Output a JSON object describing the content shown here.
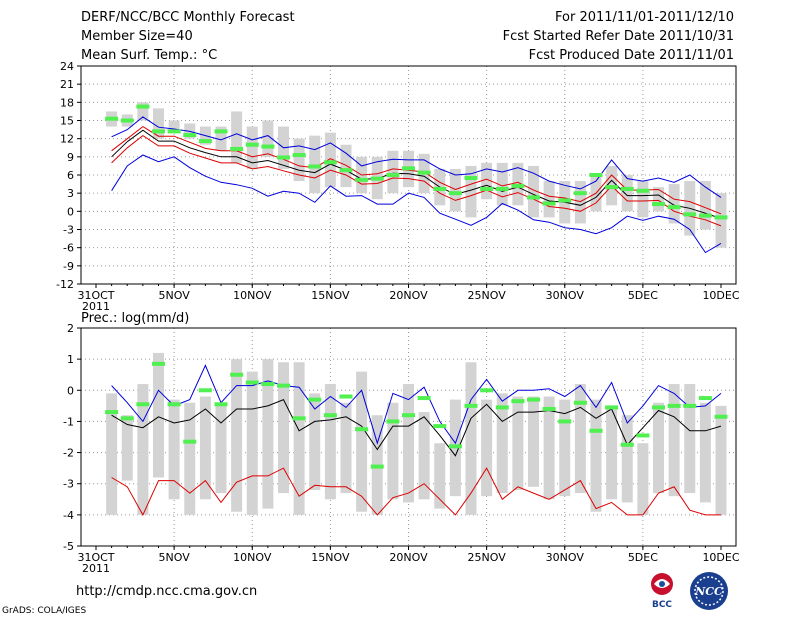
{
  "header": {
    "title": "DERF/NCC/BCC Monthly Forecast",
    "member_size": "Member Size=40",
    "variable": "Mean Surf. Temp.: °C",
    "forecast_period": "For 2011/11/01-2011/12/10",
    "started_refer": "Fcst Started Refer Date 2011/10/31",
    "produced": "Fcst Produced Date 2011/11/01"
  },
  "footer": {
    "url": "http://cmdp.ncc.cma.gov.cn",
    "grads": "GrADS: COLA/IGES",
    "logo_bcc": "BCC",
    "logo_ncc": "NCC"
  },
  "colors": {
    "box": "#d3d3d3",
    "obs": "#4ff04f",
    "upper": "#0000dd",
    "mean": "#000000",
    "lower": "#dd0000",
    "grid": "#999999"
  },
  "chart_data": [
    {
      "type": "line",
      "name": "temperature",
      "ylabel": "Mean Surf. Temp.: °C",
      "ylim": [
        -12,
        24
      ],
      "yticks": [
        -12,
        -9,
        -6,
        -3,
        0,
        3,
        6,
        9,
        12,
        15,
        18,
        21,
        24
      ],
      "x_start": 0,
      "x_end": 40,
      "xticks": [
        {
          "x": 0,
          "label": "31OCT",
          "sub": "2011"
        },
        {
          "x": 5,
          "label": "5NOV"
        },
        {
          "x": 10,
          "label": "10NOV"
        },
        {
          "x": 15,
          "label": "15NOV"
        },
        {
          "x": 20,
          "label": "20NOV"
        },
        {
          "x": 25,
          "label": "25NOV"
        },
        {
          "x": 30,
          "label": "30NOV"
        },
        {
          "x": 35,
          "label": "5DEC"
        },
        {
          "x": 40,
          "label": "10DEC"
        }
      ],
      "grid": true,
      "box_low": [
        14.0,
        14.0,
        15.0,
        12.0,
        13.0,
        12.0,
        11.0,
        10.0,
        8.0,
        7.0,
        9.0,
        7.0,
        5.0,
        3.0,
        4.0,
        4.0,
        3.0,
        2.0,
        3.0,
        4.0,
        3.0,
        1.0,
        0.0,
        -1.0,
        2.0,
        1.0,
        1.0,
        -1.0,
        -1.0,
        -2.0,
        -2.0,
        0.0,
        1.0,
        0.0,
        -1.0,
        0.0,
        -2.0,
        -4.0,
        -3.0,
        -6.0
      ],
      "box_high": [
        16.5,
        16.0,
        18.0,
        17.0,
        15.0,
        14.5,
        14.0,
        14.0,
        16.5,
        14.0,
        15.0,
        14.0,
        12.0,
        12.5,
        13.0,
        11.0,
        9.0,
        9.0,
        10.0,
        10.0,
        9.5,
        7.0,
        7.0,
        7.5,
        8.0,
        8.0,
        8.0,
        7.5,
        5.0,
        5.0,
        5.0,
        6.0,
        7.5,
        6.0,
        5.0,
        4.0,
        4.5,
        5.0,
        5.0,
        3.0
      ],
      "obs": [
        15.3,
        15.0,
        17.3,
        13.2,
        13.2,
        12.6,
        11.6,
        13.2,
        10.3,
        11.0,
        10.7,
        8.9,
        9.3,
        7.4,
        8.1,
        6.8,
        5.2,
        5.4,
        6.0,
        7.1,
        6.4,
        3.7,
        3.0,
        5.5,
        3.7,
        3.7,
        4.2,
        2.3,
        1.3,
        1.8,
        3.0,
        6.0,
        4.0,
        3.7,
        3.4,
        1.2,
        0.7,
        -0.5,
        -0.7,
        -1.0
      ],
      "series": [
        {
          "name": "ensemble-upper",
          "values": [
            12.3,
            13.5,
            15.6,
            13.9,
            13.6,
            13.2,
            12.5,
            11.8,
            12.8,
            11.8,
            12.5,
            10.5,
            10.8,
            10.2,
            11.3,
            9.6,
            7.5,
            8.2,
            8.6,
            8.5,
            8.5,
            7.0,
            6.0,
            6.2,
            7.0,
            6.5,
            7.2,
            6.3,
            5.0,
            4.3,
            3.7,
            5.0,
            8.5,
            5.4,
            5.0,
            5.5,
            4.8,
            6.0,
            4.0,
            2.3
          ]
        },
        {
          "name": "ensemble-upper-mid",
          "values": [
            10.0,
            12.0,
            14.0,
            12.4,
            12.4,
            11.4,
            10.4,
            10.0,
            10.0,
            9.0,
            9.5,
            8.6,
            7.5,
            7.2,
            8.7,
            7.6,
            6.0,
            6.2,
            7.0,
            6.8,
            6.5,
            4.8,
            3.6,
            4.5,
            5.3,
            4.2,
            4.8,
            3.5,
            2.5,
            2.2,
            1.6,
            3.0,
            6.0,
            3.5,
            3.5,
            3.6,
            2.0,
            1.6,
            0.6,
            -0.4
          ]
        },
        {
          "name": "ensemble-mean",
          "values": [
            9.0,
            11.5,
            13.4,
            11.6,
            11.6,
            10.5,
            9.7,
            9.0,
            9.0,
            8.0,
            8.4,
            7.6,
            6.8,
            6.4,
            7.8,
            6.8,
            5.3,
            5.4,
            6.3,
            6.2,
            5.8,
            4.0,
            2.8,
            3.5,
            4.3,
            3.3,
            4.0,
            2.8,
            1.7,
            1.5,
            1.0,
            2.3,
            5.1,
            2.6,
            2.6,
            2.7,
            1.0,
            0.5,
            -0.3,
            -1.2
          ]
        },
        {
          "name": "ensemble-lower-mid",
          "values": [
            8.0,
            10.5,
            12.5,
            10.8,
            10.8,
            9.6,
            8.8,
            8.0,
            8.0,
            7.0,
            7.4,
            6.7,
            6.0,
            5.5,
            6.8,
            6.0,
            4.5,
            4.6,
            5.5,
            5.4,
            5.0,
            3.0,
            1.8,
            2.6,
            3.5,
            2.4,
            3.1,
            2.0,
            0.8,
            0.5,
            0.0,
            1.4,
            4.2,
            1.7,
            1.7,
            1.8,
            0.0,
            -0.8,
            -1.4,
            -2.4
          ]
        },
        {
          "name": "ensemble-lower",
          "values": [
            3.4,
            7.5,
            9.3,
            8.2,
            9.0,
            7.2,
            5.8,
            4.8,
            4.4,
            3.8,
            2.5,
            3.3,
            3.0,
            1.5,
            4.2,
            2.5,
            2.6,
            1.2,
            1.2,
            3.0,
            2.3,
            -0.3,
            -1.3,
            -2.3,
            -1.0,
            1.3,
            0.2,
            -1.4,
            -1.8,
            -2.7,
            -3.0,
            -3.7,
            -2.7,
            -0.8,
            -1.5,
            -0.8,
            -1.3,
            -3.0,
            -6.8,
            -5.3
          ]
        }
      ]
    },
    {
      "type": "line",
      "name": "precipitation",
      "ylabel": "Prec.: log(mm/d)",
      "ylim": [
        -5,
        2
      ],
      "yticks": [
        -5,
        -4,
        -3,
        -2,
        -1,
        0,
        1,
        2
      ],
      "x_start": 0,
      "x_end": 40,
      "xticks": [
        {
          "x": 0,
          "label": "31OCT",
          "sub": "2011"
        },
        {
          "x": 5,
          "label": "5NOV"
        },
        {
          "x": 10,
          "label": "10NOV"
        },
        {
          "x": 15,
          "label": "15NOV"
        },
        {
          "x": 20,
          "label": "20NOV"
        },
        {
          "x": 25,
          "label": "25NOV"
        },
        {
          "x": 30,
          "label": "30NOV"
        },
        {
          "x": 35,
          "label": "5DEC"
        },
        {
          "x": 40,
          "label": "10DEC"
        }
      ],
      "grid": true,
      "box_low": [
        -4.0,
        -2.9,
        -4.0,
        -2.8,
        -3.5,
        -4.0,
        -3.5,
        -3.3,
        -3.9,
        -4.0,
        -3.8,
        -3.3,
        -4.0,
        -3.2,
        -3.5,
        -3.3,
        -3.9,
        -4.0,
        -3.5,
        -3.6,
        -3.5,
        -3.8,
        -3.4,
        -4.0,
        -3.4,
        -3.3,
        -3.2,
        -3.1,
        -3.5,
        -3.4,
        -3.3,
        -3.9,
        -3.5,
        -3.6,
        -4.0,
        -3.3,
        -3.4,
        -3.3,
        -3.6,
        -4.0
      ],
      "box_high": [
        -0.1,
        -0.8,
        0.2,
        1.2,
        -0.3,
        -0.4,
        -0.2,
        -0.4,
        1.0,
        0.6,
        1.0,
        0.9,
        0.9,
        -0.1,
        0.2,
        -0.4,
        0.6,
        -0.8,
        -0.4,
        0.2,
        -0.7,
        -1.7,
        -0.3,
        0.9,
        -0.3,
        -0.1,
        -0.2,
        -0.2,
        -0.2,
        -0.3,
        0.2,
        -0.3,
        -0.5,
        -0.8,
        -1.7,
        -0.4,
        0.2,
        0.2,
        -0.4,
        -0.5
      ],
      "obs": [
        -0.7,
        -0.9,
        -0.45,
        0.85,
        -0.45,
        -1.65,
        0.0,
        -0.45,
        0.5,
        0.25,
        0.2,
        0.15,
        -0.9,
        -0.3,
        -0.8,
        -0.2,
        -1.25,
        -2.45,
        -1.0,
        -0.8,
        -0.25,
        -1.15,
        -1.8,
        -0.5,
        0.0,
        -0.55,
        -0.35,
        -0.3,
        -0.6,
        -1.0,
        -0.4,
        -1.3,
        -0.55,
        -1.75,
        -1.45,
        -0.55,
        -0.5,
        -0.5,
        -0.25,
        -0.85
      ],
      "series": [
        {
          "name": "ensemble-upper",
          "values": [
            0.15,
            -0.4,
            -1.0,
            0.0,
            -0.5,
            -0.3,
            0.8,
            -0.4,
            0.15,
            0.15,
            0.3,
            0.15,
            0.1,
            -0.6,
            -0.2,
            -0.55,
            0.0,
            -1.7,
            -0.1,
            -0.3,
            0.1,
            -1.0,
            -1.7,
            -0.3,
            0.35,
            -0.35,
            0.0,
            0.0,
            0.05,
            -0.2,
            0.15,
            -0.55,
            0.25,
            -1.05,
            -0.5,
            0.15,
            -0.1,
            -0.55,
            -0.5,
            -0.1
          ]
        },
        {
          "name": "ensemble-mean",
          "values": [
            -0.8,
            -1.1,
            -1.2,
            -0.85,
            -1.05,
            -0.95,
            -0.6,
            -1.05,
            -0.6,
            -0.6,
            -0.5,
            -0.3,
            -1.3,
            -1.0,
            -0.95,
            -0.85,
            -1.15,
            -1.9,
            -1.15,
            -1.15,
            -0.85,
            -1.45,
            -2.1,
            -0.9,
            -0.45,
            -1.0,
            -0.7,
            -0.7,
            -0.65,
            -0.75,
            -0.55,
            -0.9,
            -0.6,
            -1.75,
            -1.2,
            -0.65,
            -0.85,
            -1.3,
            -1.3,
            -1.15
          ]
        },
        {
          "name": "ensemble-lower",
          "values": [
            -2.8,
            -3.1,
            -4.0,
            -2.9,
            -2.9,
            -3.3,
            -2.9,
            -3.6,
            -2.95,
            -2.75,
            -2.75,
            -2.5,
            -3.4,
            -3.05,
            -3.1,
            -3.1,
            -3.4,
            -4.0,
            -3.45,
            -3.3,
            -3.0,
            -3.5,
            -4.0,
            -3.3,
            -2.5,
            -3.5,
            -3.1,
            -3.3,
            -3.5,
            -3.2,
            -2.9,
            -3.8,
            -3.6,
            -4.0,
            -4.0,
            -3.3,
            -3.1,
            -3.85,
            -4.0,
            -4.0
          ]
        }
      ]
    }
  ]
}
